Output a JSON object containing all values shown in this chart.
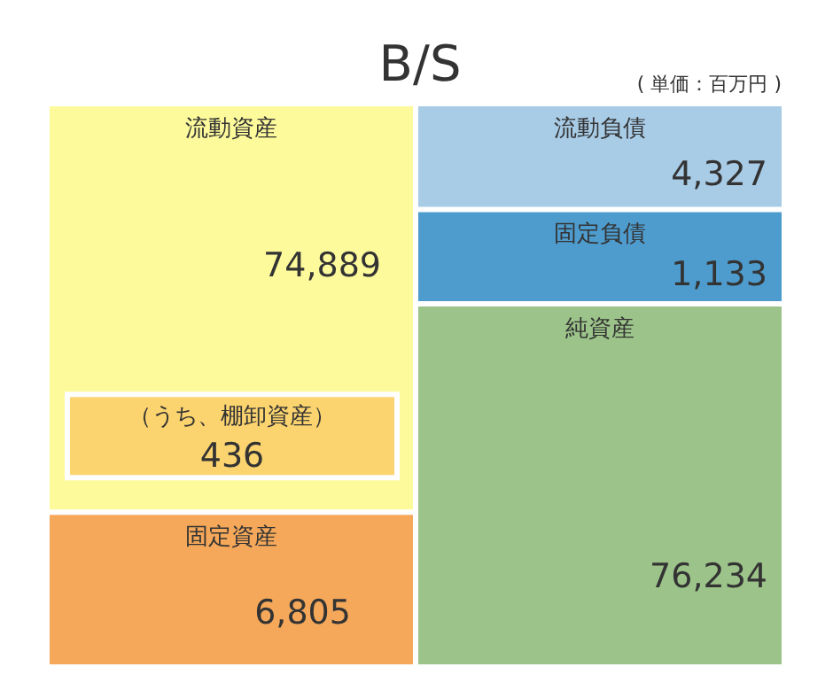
{
  "chart_data": {
    "type": "other",
    "title": "B/S",
    "subtitle": "( 単価：百万円 )",
    "categories": [
      "流動資産",
      "（うち、棚卸資産）",
      "固定資産",
      "流動負債",
      "固定負債",
      "純資産"
    ],
    "values": [
      74889,
      436,
      6805,
      4327,
      1133,
      76234
    ],
    "colors": [
      "#fdfa9c",
      "#fbd46f",
      "#f5a85a",
      "#a8cbe6",
      "#4e9cce",
      "#9cc48a"
    ],
    "value_labels": [
      "74,889",
      "436",
      "6,805",
      "4,327",
      "1,133",
      "76,234"
    ]
  }
}
